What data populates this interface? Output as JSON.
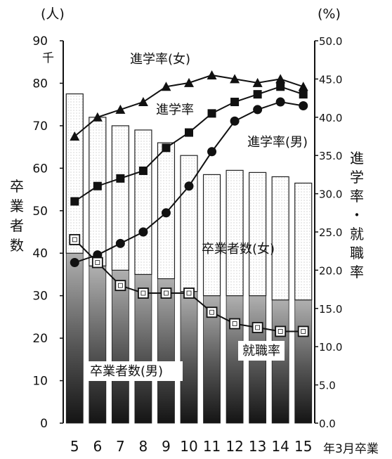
{
  "chart_data": {
    "type": "bar",
    "x_suffix": "年3月卒業",
    "categories": [
      "5",
      "6",
      "7",
      "8",
      "9",
      "10",
      "11",
      "12",
      "13",
      "14",
      "15"
    ],
    "y_left": {
      "unit": "(人)",
      "unit_sub": "千",
      "label_chars": [
        "卒",
        "業",
        "者",
        "数"
      ],
      "ylim": [
        0,
        90
      ],
      "ticks": [
        0,
        10,
        20,
        30,
        40,
        50,
        60,
        70,
        80,
        90
      ]
    },
    "y_right": {
      "unit": "(%)",
      "label_chars": [
        "進",
        "学",
        "率",
        "・",
        "就",
        "職",
        "率"
      ],
      "ylim": [
        0,
        50
      ],
      "ticks": [
        "0.0",
        "5.0",
        "10.0",
        "15.0",
        "20.0",
        "25.0",
        "30.0",
        "35.0",
        "40.0",
        "45.0",
        "50.0"
      ]
    },
    "bar_series": [
      {
        "name": "卒業者数(男)",
        "values": [
          40,
          37,
          36,
          35,
          34,
          31,
          30,
          30,
          30,
          29,
          29
        ],
        "color": "#555555"
      },
      {
        "name": "卒業者数(女)",
        "values": [
          37.5,
          35,
          34,
          34,
          32,
          32,
          28.5,
          29.5,
          29,
          29,
          27.5
        ],
        "color": "#ffffff"
      }
    ],
    "line_series": [
      {
        "name": "進学率(女)",
        "marker": "triangle",
        "values": [
          37.5,
          40,
          41,
          42,
          44,
          44.5,
          45.5,
          45,
          44.5,
          45,
          44
        ]
      },
      {
        "name": "進学率",
        "marker": "square",
        "values": [
          29,
          31,
          32,
          33,
          36,
          38,
          40.5,
          42,
          43,
          44,
          43
        ]
      },
      {
        "name": "進学率(男)",
        "marker": "circle",
        "values": [
          21,
          22,
          23.5,
          25,
          27.5,
          31,
          35.5,
          39.5,
          41,
          42,
          41.5
        ]
      },
      {
        "name": "就職率",
        "marker": "open-square",
        "values": [
          24,
          21,
          18,
          17,
          17,
          17,
          14.5,
          13,
          12.5,
          12,
          12
        ]
      }
    ]
  }
}
